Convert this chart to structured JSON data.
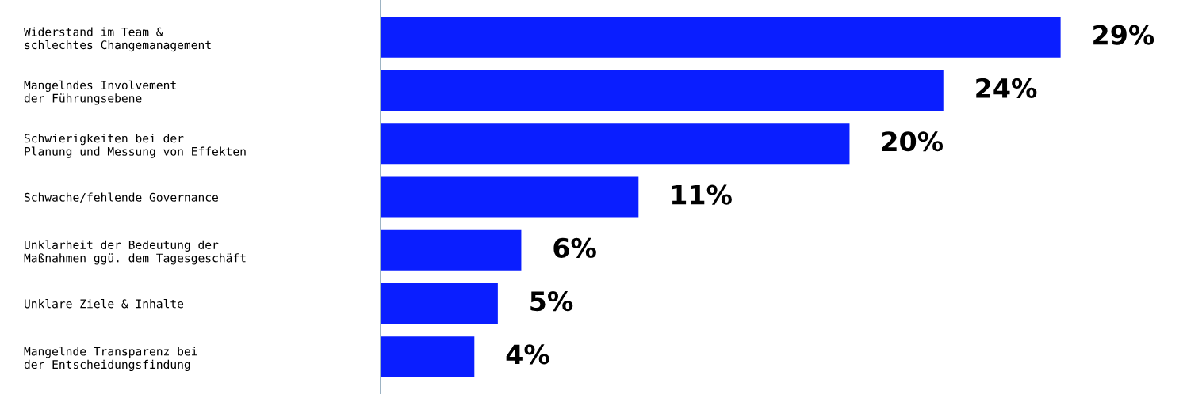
{
  "chart_data": {
    "type": "bar",
    "orientation": "horizontal",
    "categories": [
      "Widerstand im Team &\nschlechtes Changemanagement",
      "Mangelndes Involvement\nder Führungsebene",
      "Schwierigkeiten bei der\nPlanung und Messung von Effekten",
      "Schwache/fehlende Governance",
      "Unklarheit der Bedeutung der\nMaßnahmen ggü. dem Tagesgeschäft",
      "Unklare Ziele & Inhalte",
      "Mangelnde Transparenz bei\nder Entscheidungsfindung"
    ],
    "values": [
      29,
      24,
      20,
      11,
      6,
      5,
      4
    ],
    "value_labels": [
      "29%",
      "24%",
      "20%",
      "11%",
      "6%",
      "5%",
      "4%"
    ],
    "color": "#0a1eff"
  }
}
